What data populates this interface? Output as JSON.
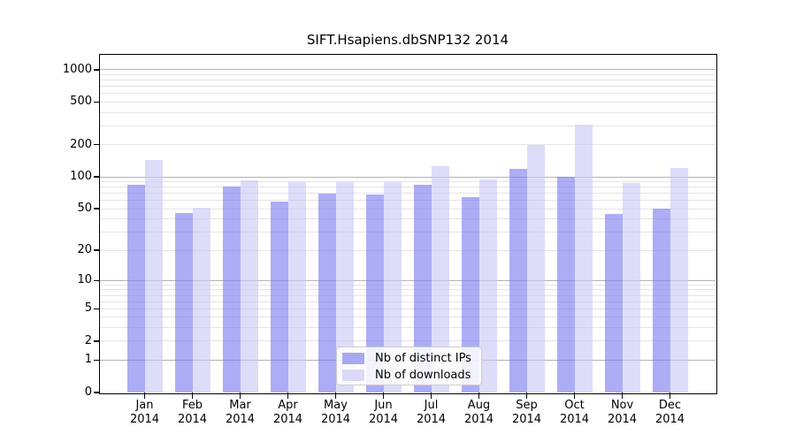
{
  "title": "SIFT.Hsapiens.dbSNP132 2014",
  "chart_data": {
    "type": "bar",
    "title": "SIFT.Hsapiens.dbSNP132 2014",
    "categories": [
      "Jan",
      "Feb",
      "Mar",
      "Apr",
      "May",
      "Jun",
      "Jul",
      "Aug",
      "Sep",
      "Oct",
      "Nov",
      "Dec"
    ],
    "year_label": "2014",
    "series": [
      {
        "name": "Nb of distinct IPs",
        "values": [
          85,
          46,
          81,
          58,
          69,
          68,
          84,
          64,
          120,
          100,
          45,
          50
        ]
      },
      {
        "name": "Nb of downloads",
        "values": [
          145,
          51,
          92,
          90,
          90,
          89,
          125,
          94,
          200,
          310,
          88,
          122
        ]
      }
    ],
    "y_ticks": [
      0,
      1,
      2,
      5,
      10,
      20,
      50,
      100,
      200,
      500,
      1000
    ],
    "y_scale": "log10(value+1)",
    "ylim": [
      0,
      1380
    ],
    "grid": "horizontal log gridlines; darker lines at powers of 10, light minors at 2-9 per decade",
    "legend_position": "lower center"
  },
  "colors": {
    "ips_bar": "rgba(122,122,240,0.62)",
    "downloads_bar": "rgba(200,200,246,0.62)",
    "ips_swatch": "#a9a9f3",
    "downloads_swatch": "#d9d9f8",
    "grid_major": "#b4b4b4",
    "grid_minor": "#e5e5e5",
    "axis": "#000000",
    "text": "#000000",
    "legend_border": "#cccccc"
  }
}
